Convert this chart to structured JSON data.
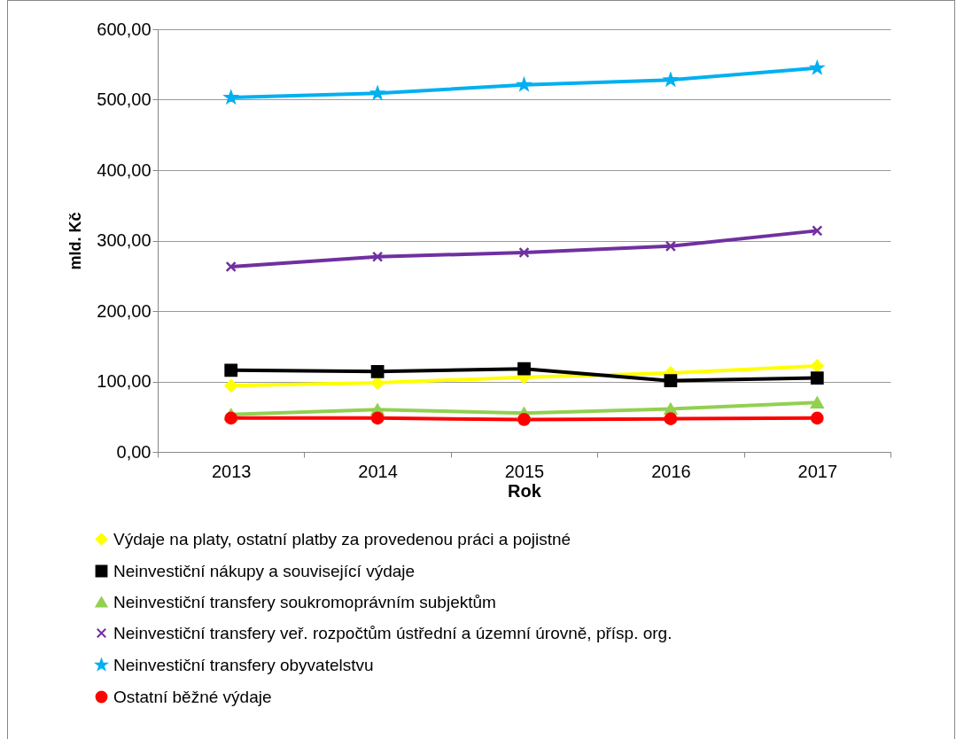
{
  "chart_data": {
    "type": "line",
    "xlabel": "Rok",
    "ylabel": "mld. Kč",
    "categories": [
      "2013",
      "2014",
      "2015",
      "2016",
      "2017"
    ],
    "series": [
      {
        "name": "Výdaje na platy, ostatní platby za provedenou práci a pojistné",
        "color": "#ffff00",
        "marker": "diamond",
        "values": [
          94,
          98,
          106,
          112,
          122
        ]
      },
      {
        "name": "Neinvestiční nákupy a související výdaje",
        "color": "#000000",
        "marker": "square",
        "values": [
          116,
          114,
          118,
          101,
          105
        ]
      },
      {
        "name": "Neinvestiční transfery soukromoprávním subjektům",
        "color": "#92d050",
        "marker": "triangle",
        "values": [
          53,
          60,
          55,
          61,
          70
        ]
      },
      {
        "name": "Neinvestiční transfery veř. rozpočtům ústřední a územní úrovně, přísp. org.",
        "color": "#7030a0",
        "marker": "cross",
        "values": [
          263,
          277,
          283,
          292,
          314
        ]
      },
      {
        "name": "Neinvestiční transfery obyvatelstvu",
        "color": "#00b0f0",
        "marker": "star",
        "values": [
          503,
          509,
          521,
          528,
          545
        ]
      },
      {
        "name": "Ostatní běžné výdaje",
        "color": "#ff0000",
        "marker": "circle",
        "values": [
          48,
          48,
          46,
          47,
          48
        ]
      }
    ],
    "ylim": [
      0,
      600
    ],
    "yticks": [
      {
        "value": 0,
        "label": "0,00"
      },
      {
        "value": 100,
        "label": "100,00"
      },
      {
        "value": 200,
        "label": "200,00"
      },
      {
        "value": 300,
        "label": "300,00"
      },
      {
        "value": 400,
        "label": "400,00"
      },
      {
        "value": 500,
        "label": "500,00"
      },
      {
        "value": 600,
        "label": "600,00"
      }
    ],
    "grid": "y",
    "legend": "bottom",
    "line_style": "solid"
  }
}
